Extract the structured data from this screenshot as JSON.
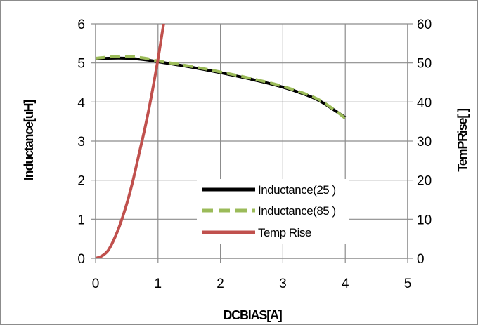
{
  "chart_data": {
    "type": "line",
    "title": "",
    "xlabel": "DCBIAS[A]",
    "ylabel": "Inductance[uH]",
    "y2label": "TemPRise[ ]",
    "xlim": [
      0,
      5
    ],
    "ylim": [
      0,
      6
    ],
    "y2lim": [
      0,
      60
    ],
    "x_ticks": [
      "0",
      "1",
      "2",
      "3",
      "4",
      "5"
    ],
    "y_ticks": [
      "0",
      "1",
      "2",
      "3",
      "4",
      "5",
      "6"
    ],
    "y2_ticks": [
      "0",
      "10",
      "20",
      "30",
      "40",
      "50",
      "60"
    ],
    "grid": true,
    "legend_position": "bottom-right inside plot",
    "series": [
      {
        "name": "Inductance(25  )",
        "axis": "left",
        "color": "#000000",
        "dash": "solid",
        "x": [
          0,
          0.2,
          0.5,
          0.8,
          1.0,
          1.5,
          2.0,
          2.5,
          3.0,
          3.5,
          3.8,
          4.0
        ],
        "y": [
          5.1,
          5.12,
          5.12,
          5.08,
          5.03,
          4.9,
          4.75,
          4.58,
          4.38,
          4.1,
          3.82,
          3.6
        ]
      },
      {
        "name": "Inductance(85  )",
        "axis": "left",
        "color": "#9bbb59",
        "dash": "dashed",
        "x": [
          0,
          0.2,
          0.5,
          0.8,
          1.0,
          1.5,
          2.0,
          2.5,
          3.0,
          3.5,
          3.8,
          4.0
        ],
        "y": [
          5.12,
          5.15,
          5.17,
          5.12,
          5.05,
          4.92,
          4.77,
          4.6,
          4.4,
          4.12,
          3.83,
          3.58
        ]
      },
      {
        "name": "Temp Rise",
        "axis": "right",
        "color": "#c0504d",
        "dash": "solid",
        "x": [
          0,
          0.1,
          0.2,
          0.3,
          0.4,
          0.5,
          0.6,
          0.7,
          0.8,
          0.9,
          1.0,
          1.05,
          1.1
        ],
        "y": [
          0,
          0.6,
          2,
          5,
          9,
          14,
          20,
          27,
          34,
          42,
          51,
          56,
          61
        ]
      }
    ]
  }
}
